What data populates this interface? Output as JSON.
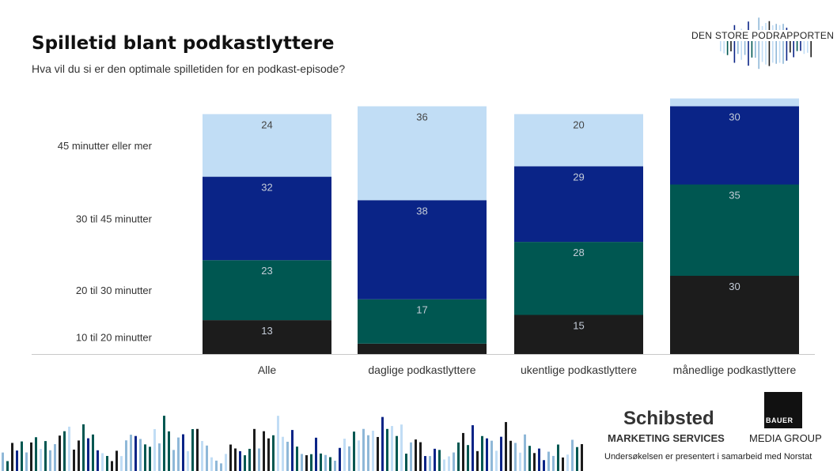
{
  "header": {
    "title": "Spilletid blant podkastlyttere",
    "subtitle": "Hva vil du si er den optimale spilletiden for en podkast-episode?"
  },
  "logo": {
    "text": "DEN STORE PODRAPPORTEN"
  },
  "chart_data": {
    "type": "bar",
    "stacked": true,
    "categories": [
      "Alle",
      "daglige podkastlyttere",
      "ukentlige podkastlyttere",
      "månedlige podkastlyttere"
    ],
    "series": [
      {
        "name": "10 til 20 minutter",
        "values": [
          13,
          4,
          15,
          30
        ],
        "color": "#1c1c1c"
      },
      {
        "name": "20 til 30 minutter",
        "values": [
          23,
          17,
          28,
          35
        ],
        "color": "#005751"
      },
      {
        "name": "30 til 45 minutter",
        "values": [
          32,
          38,
          29,
          30
        ],
        "color": "#0a2487"
      },
      {
        "name": "45 minutter eller mer",
        "values": [
          24,
          36,
          20,
          3
        ],
        "color": "#c1ddf5"
      }
    ],
    "data_labels": [
      [
        "13",
        "",
        "15",
        "30"
      ],
      [
        "23",
        "17",
        "28",
        "35"
      ],
      [
        "32",
        "38",
        "29",
        "30"
      ],
      [
        "24",
        "36",
        "20",
        ""
      ]
    ],
    "legend_position": "left",
    "gridlines": false
  },
  "sponsors": {
    "schibsted_name": "Schibsted",
    "schibsted_sub": "MARKETING SERVICES",
    "bauer_name": "BAUER",
    "bauer_sub": "MEDIA GROUP"
  },
  "footnote": "Undersøkelsen er presentert i samarbeid med Norstat"
}
